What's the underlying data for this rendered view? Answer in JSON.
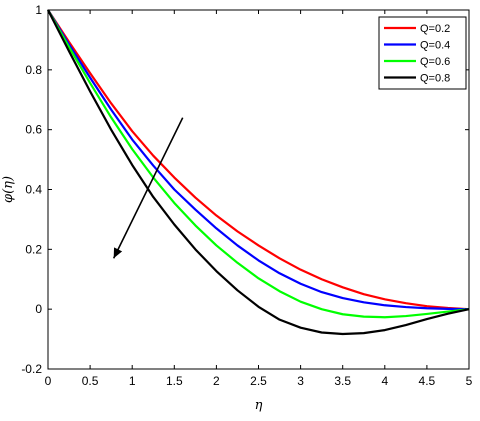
{
  "chart_data": {
    "type": "line",
    "xlabel": "η",
    "ylabel": "φ(η)",
    "xlim": [
      0,
      5
    ],
    "ylim": [
      -0.2,
      1
    ],
    "xticks": [
      0,
      0.5,
      1,
      1.5,
      2,
      2.5,
      3,
      3.5,
      4,
      4.5,
      5
    ],
    "yticks": [
      -0.2,
      0,
      0.2,
      0.4,
      0.6,
      0.8,
      1
    ],
    "grid": false,
    "legend_position": "top-right",
    "series": [
      {
        "name": "Q=0.2",
        "color": "#ff0000",
        "x": [
          0,
          0.25,
          0.5,
          0.75,
          1,
          1.25,
          1.5,
          1.75,
          2,
          2.25,
          2.5,
          2.75,
          3,
          3.25,
          3.5,
          3.75,
          4,
          4.25,
          4.5,
          4.75,
          5
        ],
        "y": [
          1,
          0.893,
          0.789,
          0.688,
          0.595,
          0.513,
          0.44,
          0.373,
          0.313,
          0.26,
          0.213,
          0.17,
          0.132,
          0.1,
          0.073,
          0.05,
          0.033,
          0.02,
          0.01,
          0.004,
          0
        ]
      },
      {
        "name": "Q=0.4",
        "color": "#0000ff",
        "x": [
          0,
          0.25,
          0.5,
          0.75,
          1,
          1.25,
          1.5,
          1.75,
          2,
          2.25,
          2.5,
          2.75,
          3,
          3.25,
          3.5,
          3.75,
          4,
          4.25,
          4.5,
          4.75,
          5
        ],
        "y": [
          1,
          0.885,
          0.774,
          0.667,
          0.567,
          0.48,
          0.4,
          0.333,
          0.27,
          0.213,
          0.163,
          0.12,
          0.085,
          0.057,
          0.037,
          0.023,
          0.013,
          0.007,
          0.003,
          0.001,
          0
        ]
      },
      {
        "name": "Q=0.6",
        "color": "#00ff00",
        "x": [
          0,
          0.25,
          0.5,
          0.75,
          1,
          1.25,
          1.5,
          1.75,
          2,
          2.25,
          2.5,
          2.75,
          3,
          3.25,
          3.5,
          3.75,
          4,
          4.25,
          4.5,
          4.75,
          5
        ],
        "y": [
          1,
          0.876,
          0.756,
          0.641,
          0.535,
          0.44,
          0.355,
          0.28,
          0.213,
          0.155,
          0.103,
          0.06,
          0.025,
          0.0,
          -0.017,
          -0.025,
          -0.027,
          -0.023,
          -0.016,
          -0.008,
          0
        ]
      },
      {
        "name": "Q=0.8",
        "color": "#000000",
        "x": [
          0,
          0.25,
          0.5,
          0.75,
          1,
          1.25,
          1.5,
          1.75,
          2,
          2.25,
          2.5,
          2.75,
          3,
          3.25,
          3.5,
          3.75,
          4,
          4.25,
          4.5,
          4.75,
          5
        ],
        "y": [
          1,
          0.862,
          0.728,
          0.6,
          0.482,
          0.375,
          0.283,
          0.2,
          0.127,
          0.063,
          0.008,
          -0.035,
          -0.062,
          -0.078,
          -0.083,
          -0.08,
          -0.07,
          -0.053,
          -0.033,
          -0.015,
          0
        ]
      }
    ],
    "annotations": [
      {
        "type": "arrow",
        "from": [
          1.6,
          0.64
        ],
        "to": [
          0.78,
          0.17
        ]
      }
    ]
  }
}
